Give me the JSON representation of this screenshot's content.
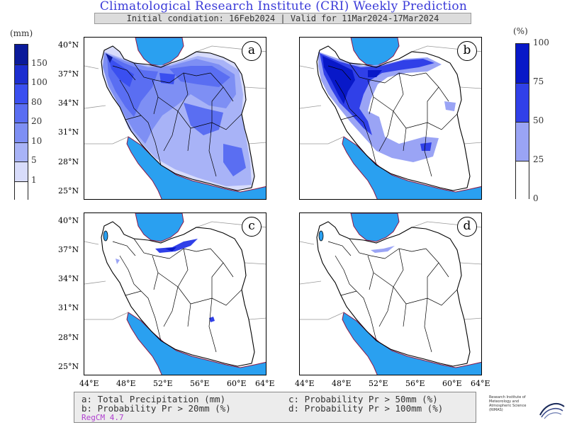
{
  "header": {
    "title": "Climatological Research Institute (CRI) Weekly Prediction",
    "subtitle": "Initial condiation: 16Feb2024 | Valid for 11Mar2024-17Mar2024"
  },
  "left_colorbar": {
    "unit": "(mm)",
    "levels": [
      "150",
      "100",
      "80",
      "20",
      "10",
      "5",
      "1"
    ],
    "colors": [
      "#0a1a9a",
      "#1c2ed0",
      "#3a4ff0",
      "#5a6ef2",
      "#7e8ff4",
      "#a8b3f7",
      "#d8dcfb",
      "#ffffff"
    ]
  },
  "right_colorbar": {
    "unit": "(%)",
    "levels": [
      "100",
      "75",
      "50",
      "25",
      "0"
    ],
    "colors": [
      "#0818c8",
      "#3040e8",
      "#9aa4f5",
      "#ffffff"
    ]
  },
  "panels": [
    {
      "label": "a"
    },
    {
      "label": "b"
    },
    {
      "label": "c"
    },
    {
      "label": "d"
    }
  ],
  "axes": {
    "lat_ticks": [
      "40°N",
      "37°N",
      "34°N",
      "31°N",
      "28°N",
      "25°N"
    ],
    "lon_ticks": [
      "44°E",
      "48°E",
      "52°E",
      "56°E",
      "60°E",
      "64°E"
    ]
  },
  "colors": {
    "sea": "#2aa0f0",
    "border": "#000000",
    "coast": "#8a1a4a",
    "title": "#3a3ad8"
  },
  "legend": {
    "a": "a: Total Precipitation (mm)",
    "b": "b: Probability Pr > 20mm (%)",
    "c": "c: Probability Pr > 50mm (%)",
    "d": "d: Probability Pr > 100mm (%)",
    "model": "RegCM 4.7"
  },
  "logo": {
    "text": "Research Institute of Meteorology and Atmospheric Science (RIMAS)"
  }
}
